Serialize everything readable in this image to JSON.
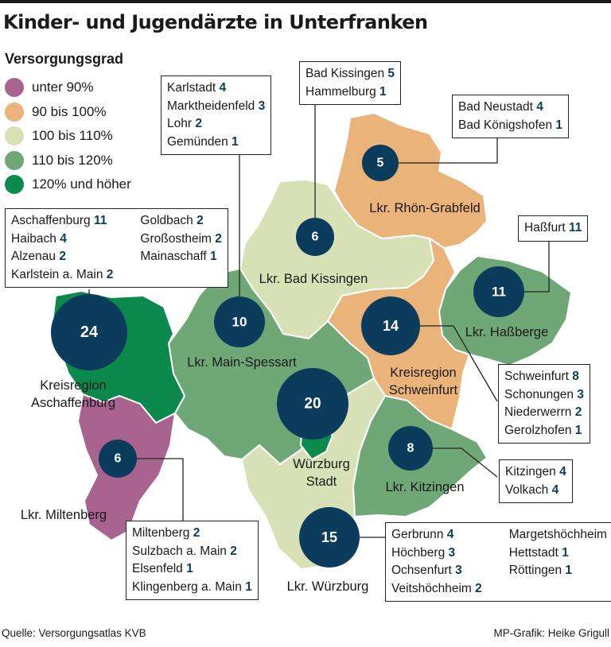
{
  "title": "Kinder- und Jugendärzte in Unterfranken",
  "legend": {
    "title": "Versorgungsgrad",
    "items": [
      {
        "label": "unter 90%",
        "color": "#a8648f"
      },
      {
        "label": "90 bis 100%",
        "color": "#e9b37a"
      },
      {
        "label": "100 bis 110%",
        "color": "#d8e1b5"
      },
      {
        "label": "110 bis 120%",
        "color": "#6fa776"
      },
      {
        "label": "120% und höher",
        "color": "#0c8a4e"
      }
    ]
  },
  "colors": {
    "circle": "#0c3c5c",
    "count_text": "#0c3c5c"
  },
  "regions": {
    "aschaffenburg": {
      "line1": "Kreisregion",
      "line2": "Aschaffenburg",
      "count": "24"
    },
    "miltenberg": {
      "line1": "Lkr. Miltenberg",
      "count": "6"
    },
    "main_spessart": {
      "line1": "Lkr. Main-Spessart",
      "count": "10"
    },
    "bad_kissingen": {
      "line1": "Lkr. Bad Kissingen",
      "count": "6"
    },
    "rhoen_grabfeld": {
      "line1": "Lkr. Rhön-Grabfeld",
      "count": "5"
    },
    "hassberge": {
      "line1": "Lkr. Haßberge",
      "count": "11"
    },
    "schweinfurt": {
      "line1": "Kreisregion",
      "line2": "Schweinfurt",
      "count": "14"
    },
    "wuerzburg_stadt": {
      "line1": "Würzburg",
      "line2": "Stadt",
      "count": "20"
    },
    "kitzingen": {
      "line1": "Lkr. Kitzingen",
      "count": "8"
    },
    "wuerzburg": {
      "line1": "Lkr. Würzburg",
      "count": "15"
    }
  },
  "boxes": {
    "aschaffenburg": {
      "col1": [
        {
          "name": "Aschaffenburg",
          "count": "11"
        },
        {
          "name": "Haibach",
          "count": "4"
        },
        {
          "name": "Alzenau",
          "count": "2"
        },
        {
          "name": "Karlstein a. Main",
          "count": "2"
        }
      ],
      "col2": [
        {
          "name": "Goldbach",
          "count": "2"
        },
        {
          "name": "Großostheim",
          "count": "2"
        },
        {
          "name": "Mainaschaff",
          "count": "1"
        }
      ]
    },
    "main_spessart": [
      {
        "name": "Karlstadt",
        "count": "4"
      },
      {
        "name": "Marktheidenfeld",
        "count": "3"
      },
      {
        "name": "Lohr",
        "count": "2"
      },
      {
        "name": "Gemünden",
        "count": "1"
      }
    ],
    "bad_kissingen": [
      {
        "name": "Bad Kissingen",
        "count": "5"
      },
      {
        "name": "Hammelburg",
        "count": "1"
      }
    ],
    "rhoen_grabfeld": [
      {
        "name": "Bad Neustadt",
        "count": "4"
      },
      {
        "name": "Bad Königshofen",
        "count": "1"
      }
    ],
    "hassberge": [
      {
        "name": "Haßfurt",
        "count": "11"
      }
    ],
    "schweinfurt": [
      {
        "name": "Schweinfurt",
        "count": "8"
      },
      {
        "name": "Schonungen",
        "count": "3"
      },
      {
        "name": "Niederwerrn",
        "count": "2"
      },
      {
        "name": "Gerolzhofen",
        "count": "1"
      }
    ],
    "kitzingen": [
      {
        "name": "Kitzingen",
        "count": "4"
      },
      {
        "name": "Volkach",
        "count": "4"
      }
    ],
    "miltenberg": [
      {
        "name": "Miltenberg",
        "count": "2"
      },
      {
        "name": "Sulzbach a. Main",
        "count": "2"
      },
      {
        "name": "Elsenfeld",
        "count": "1"
      },
      {
        "name": "Klingenberg a. Main",
        "count": "1"
      }
    ],
    "wuerzburg": {
      "col1": [
        {
          "name": "Gerbrunn",
          "count": "4"
        },
        {
          "name": "Höchberg",
          "count": "3"
        },
        {
          "name": "Ochsenfurt",
          "count": "3"
        },
        {
          "name": "Veitshöchheim",
          "count": "2"
        }
      ],
      "col2": [
        {
          "name": "Margetshöchheim",
          "count": "1"
        },
        {
          "name": "Hettstadt",
          "count": "1"
        },
        {
          "name": "Röttingen",
          "count": "1"
        }
      ]
    }
  },
  "footer": {
    "source": "Quelle: Versorgungsatlas KVB",
    "credit": "MP-Grafik: Heike Grigull"
  }
}
